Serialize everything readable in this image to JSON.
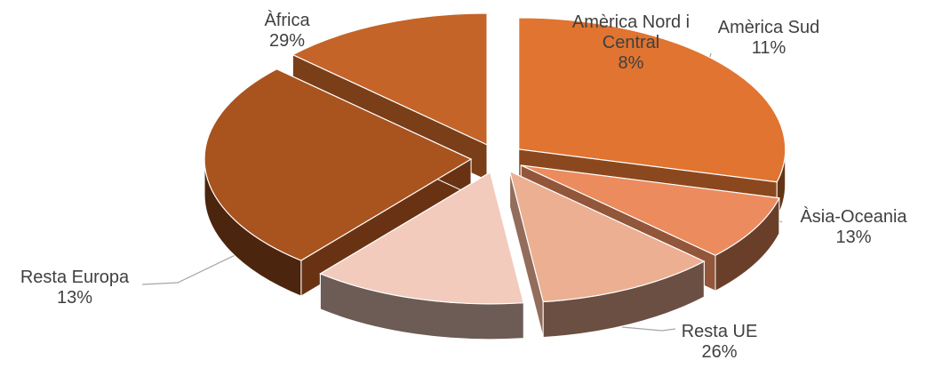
{
  "chart_data": {
    "type": "pie",
    "title": "",
    "style": "3d-exploded",
    "slices": [
      {
        "name": "Àfrica",
        "value": 29,
        "value_label": "29%",
        "color": "#E07430"
      },
      {
        "name": "Amèrica Nord i Central",
        "value": 8,
        "value_label": "8%",
        "color": "#EC8B5E"
      },
      {
        "name": "Amèrica Sud",
        "value": 11,
        "value_label": "11%",
        "color": "#ECAF92"
      },
      {
        "name": "Àsia-Oceania",
        "value": 13,
        "value_label": "13%",
        "color": "#F2CBBD"
      },
      {
        "name": "Resta UE",
        "value": 26,
        "value_label": "26%",
        "color": "#A9531F"
      },
      {
        "name": "Resta Europa",
        "value": 13,
        "value_label": "13%",
        "color": "#C46428"
      }
    ]
  }
}
